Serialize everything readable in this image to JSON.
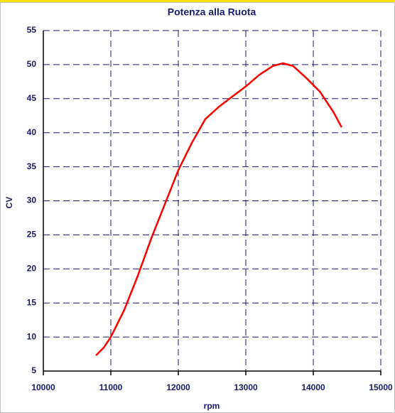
{
  "chart_data": {
    "type": "line",
    "title": "Potenza alla Ruota",
    "x_label": "rpm",
    "y_label": "CV",
    "x": [
      10780,
      10900,
      11000,
      11200,
      11400,
      11600,
      11800,
      12000,
      12200,
      12400,
      12600,
      12800,
      13000,
      13200,
      13400,
      13550,
      13700,
      13900,
      14100,
      14300,
      14420
    ],
    "series": [
      {
        "name": "CV",
        "color": "#ff0000",
        "values": [
          7.3,
          8.5,
          10,
          14,
          19,
          24.5,
          29.5,
          34.5,
          38.5,
          42,
          43.8,
          45.3,
          46.8,
          48.5,
          49.8,
          50.2,
          49.8,
          48,
          46,
          43,
          40.8
        ]
      }
    ],
    "xlim": [
      10000,
      15000
    ],
    "xticks": [
      10000,
      11000,
      12000,
      13000,
      14000,
      15000
    ],
    "ylim": [
      5,
      55
    ],
    "yticks": [
      5,
      10,
      15,
      20,
      25,
      30,
      35,
      40,
      45,
      50,
      55
    ],
    "grid": true
  }
}
